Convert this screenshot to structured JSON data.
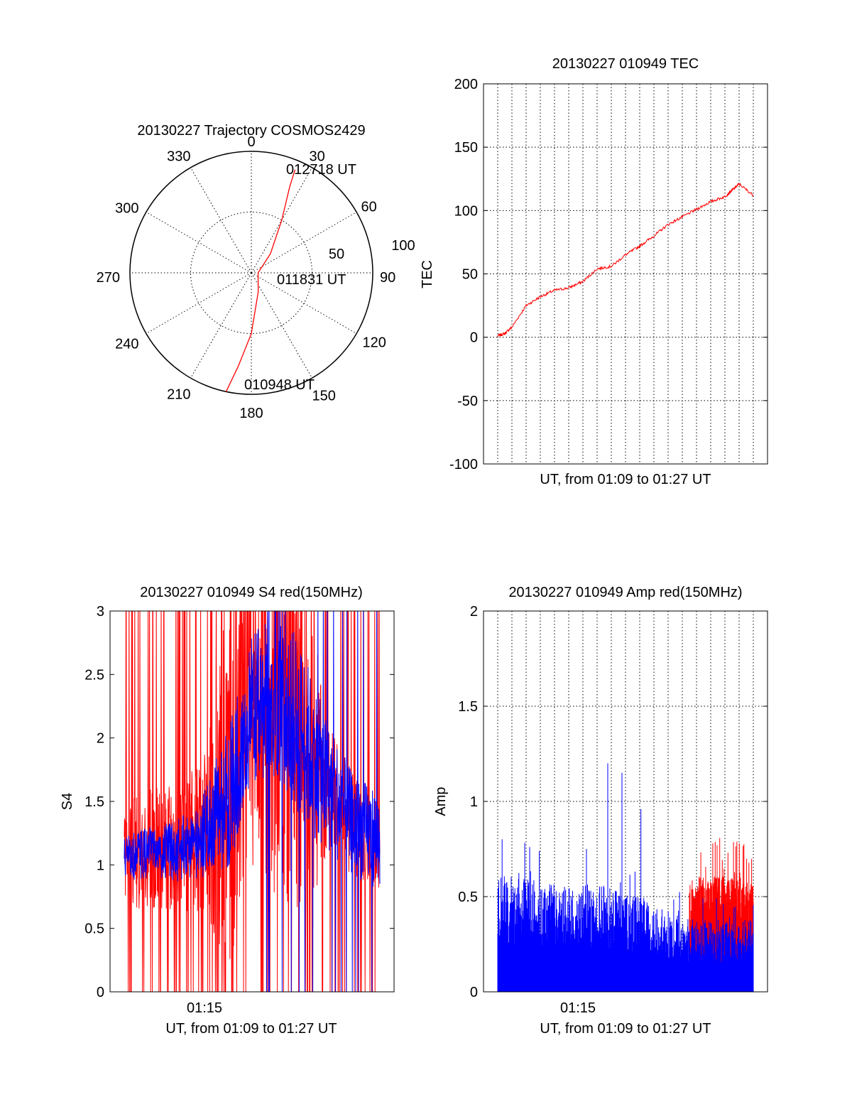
{
  "chart_data": [
    {
      "type": "polar",
      "title": "20130227 Trajectory COSMOS2429",
      "angle_labels": [
        "0",
        "30",
        "60",
        "90",
        "120",
        "150",
        "180",
        "210",
        "240",
        "270",
        "300",
        "330"
      ],
      "radius_labels": [
        "50",
        "100"
      ],
      "grid": true,
      "series": [
        {
          "color": "#ff0000",
          "points": [
            {
              "azimuth": 192,
              "zenith": 90
            },
            {
              "azimuth": 188,
              "zenith": 70
            },
            {
              "azimuth": 180,
              "zenith": 45
            },
            {
              "azimuth": 160,
              "zenith": 15
            },
            {
              "azimuth": 90,
              "zenith": 5
            },
            {
              "azimuth": 45,
              "zenith": 20
            },
            {
              "azimuth": 30,
              "zenith": 45
            },
            {
              "azimuth": 24,
              "zenith": 70
            },
            {
              "azimuth": 23,
              "zenith": 83
            }
          ]
        }
      ],
      "annotations": [
        {
          "text": "012718 UT"
        },
        {
          "text": "011831 UT"
        },
        {
          "text": "010948 UT"
        }
      ]
    },
    {
      "type": "line",
      "title": "20130227 010949 TEC",
      "xlabel": "UT, from 01:09 to 01:27 UT",
      "ylabel": "TEC",
      "xlim": [
        "01:08",
        "01:28"
      ],
      "ylim": [
        -100,
        200
      ],
      "yticks": [
        "200",
        "150",
        "100",
        "50",
        "0",
        "-50",
        "-100"
      ],
      "grid": true,
      "series": [
        {
          "color": "#ff0000",
          "x": [
            "01:09:00",
            "01:09:30",
            "01:10:00",
            "01:11:00",
            "01:12:00",
            "01:13:00",
            "01:14:00",
            "01:15:00",
            "01:16:00",
            "01:17:00",
            "01:18:00",
            "01:19:00",
            "01:20:00",
            "01:21:00",
            "01:22:00",
            "01:23:00",
            "01:24:00",
            "01:25:00",
            "01:25:30",
            "01:26:00",
            "01:27:00"
          ],
          "values": [
            1,
            3,
            8,
            25,
            32,
            37,
            39,
            44,
            54,
            56,
            65,
            72,
            80,
            89,
            95,
            101,
            107,
            111,
            116,
            121,
            112
          ]
        }
      ]
    },
    {
      "type": "line",
      "title": "20130227 010949 S4 red(150MHz)",
      "xlabel": "UT, from 01:09 to 01:27 UT",
      "ylabel": "S4",
      "xticks": [
        "01:15"
      ],
      "xlim": [
        "01:08",
        "01:28"
      ],
      "ylim": [
        0,
        3
      ],
      "yticks": [
        "3",
        "2.5",
        "2",
        "1.5",
        "1",
        "0.5",
        "0"
      ],
      "grid": false,
      "series": [
        {
          "color": "#ff0000",
          "x_range": [
            "01:09",
            "01:27"
          ],
          "baseline": [
            1.1,
            1.1,
            1.15,
            1.2,
            1.5,
            2.2,
            2.2,
            1.9,
            1.6,
            1.3,
            1.2
          ],
          "spread": [
            0.4,
            0.5,
            0.5,
            0.6,
            1.5,
            1.2,
            1.5,
            1.5,
            0.5,
            0.4,
            0.4
          ]
        },
        {
          "color": "#0000ff",
          "x_range": [
            "01:09",
            "01:27"
          ],
          "baseline": [
            1.05,
            1.1,
            1.1,
            1.2,
            1.5,
            2.2,
            2.4,
            2.0,
            1.6,
            1.3,
            1.2
          ],
          "spread": [
            0.2,
            0.2,
            0.25,
            0.3,
            0.6,
            0.6,
            0.7,
            0.7,
            0.5,
            0.4,
            0.4
          ]
        }
      ]
    },
    {
      "type": "bar",
      "title": "20130227 010949 Amp red(150MHz)",
      "xlabel": "UT, from 01:09 to 01:27 UT",
      "ylabel": "Amp",
      "xticks": [
        "01:15"
      ],
      "xlim": [
        "01:08",
        "01:28"
      ],
      "ylim": [
        0,
        2
      ],
      "yticks": [
        "2",
        "1.5",
        "1",
        "0.5",
        "0"
      ],
      "grid": true,
      "series": [
        {
          "color": "#ff0000",
          "x_range": [
            "01:22:30",
            "01:27"
          ],
          "level": [
            0.4,
            0.42,
            0.45,
            0.45,
            0.44,
            0.42
          ]
        },
        {
          "color": "#0000ff",
          "x_range": [
            "01:09",
            "01:27"
          ],
          "level": [
            0.45,
            0.45,
            0.43,
            0.42,
            0.42,
            0.38,
            0.36,
            0.3,
            0.28,
            0.28,
            0.28
          ],
          "peaks": [
            {
              "x": "01:16:45",
              "value": 1.2
            },
            {
              "x": "01:17:45",
              "value": 1.15
            },
            {
              "x": "01:19:05",
              "value": 0.96
            },
            {
              "x": "01:11:15",
              "value": 0.76
            }
          ]
        }
      ]
    }
  ]
}
